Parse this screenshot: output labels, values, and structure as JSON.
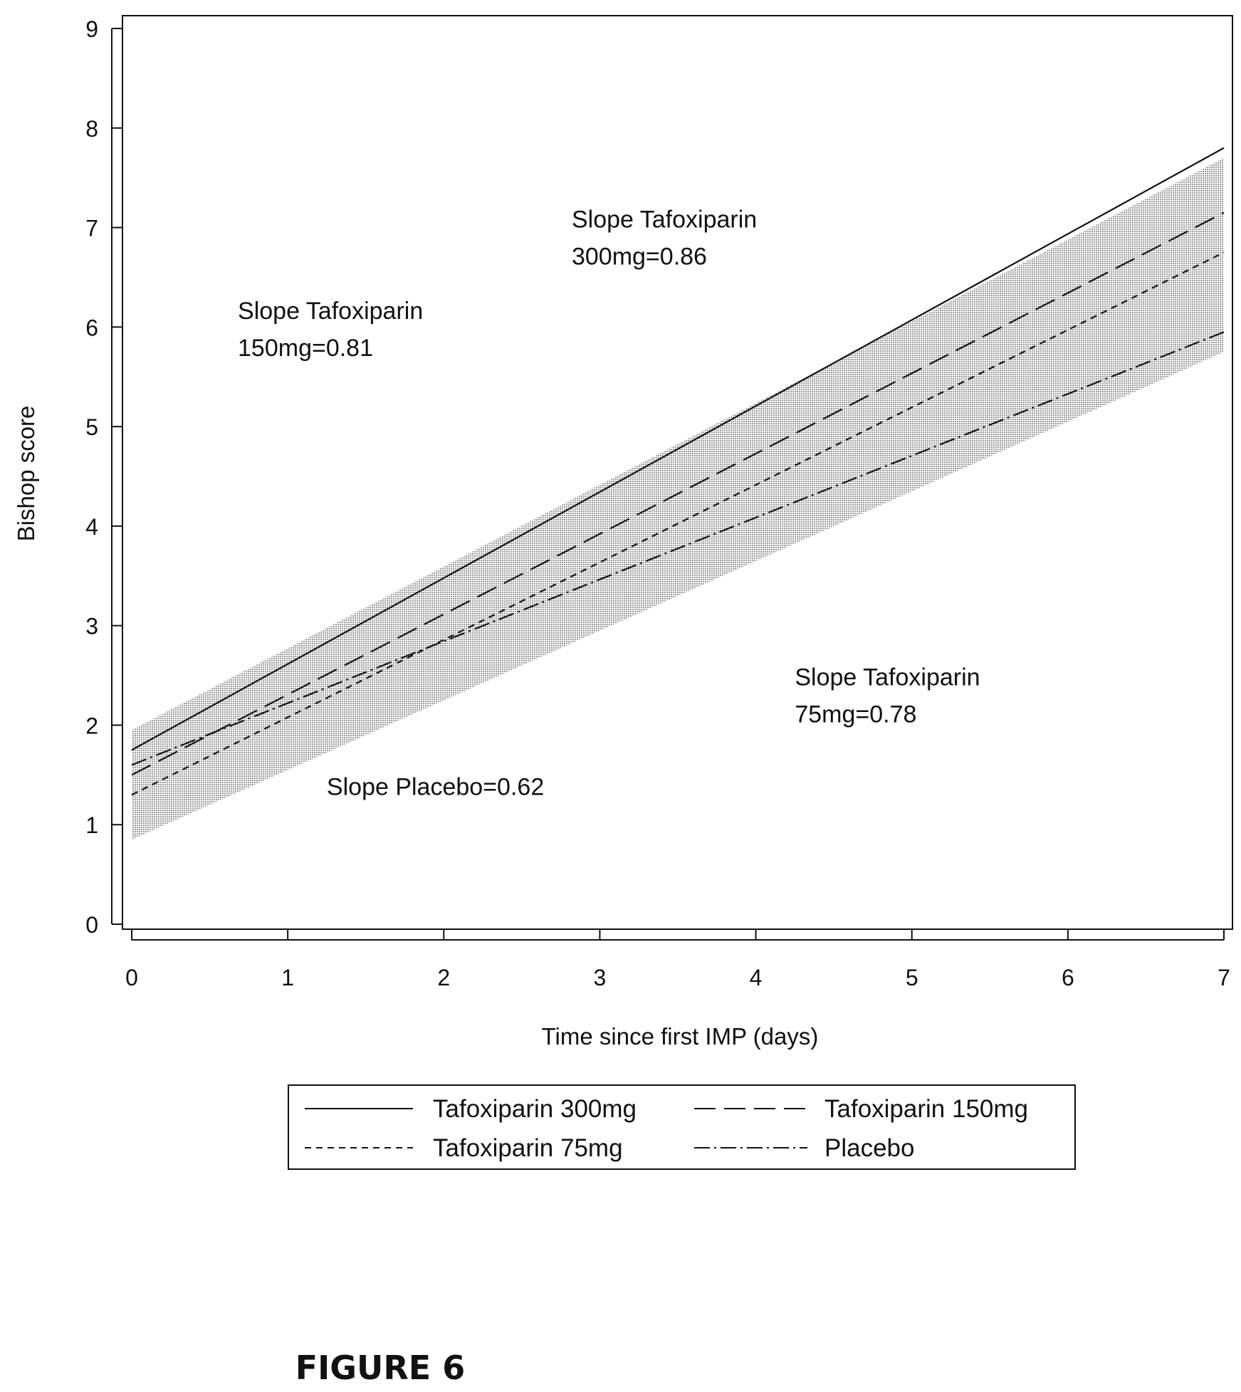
{
  "figure_label": "FIGURE 6",
  "chart_data": {
    "type": "line",
    "title": "",
    "xlabel": "Time since first IMP (days)",
    "ylabel": "Bishop score",
    "xlim": [
      0,
      7
    ],
    "ylim": [
      0,
      9
    ],
    "xticks": [
      "0",
      "1",
      "2",
      "3",
      "4",
      "5",
      "6",
      "7"
    ],
    "yticks": [
      "0",
      "1",
      "2",
      "3",
      "4",
      "5",
      "6",
      "7",
      "8",
      "9"
    ],
    "grid": false,
    "legend_position": "bottom",
    "confidence_band": {
      "x": [
        0,
        7
      ],
      "lower": [
        0.85,
        5.75
      ],
      "upper": [
        1.95,
        7.7
      ]
    },
    "series": [
      {
        "name": "Tafoxiparin 300mg",
        "style": "solid",
        "x": [
          0,
          7
        ],
        "y": [
          1.75,
          7.8
        ]
      },
      {
        "name": "Tafoxiparin 150mg",
        "style": "longdash",
        "x": [
          0,
          7
        ],
        "y": [
          1.5,
          7.15
        ]
      },
      {
        "name": "Tafoxiparin 75mg",
        "style": "shortdash",
        "x": [
          0,
          7
        ],
        "y": [
          1.3,
          6.75
        ]
      },
      {
        "name": "Placebo",
        "style": "dashdot",
        "x": [
          0,
          7
        ],
        "y": [
          1.6,
          5.95
        ]
      }
    ],
    "annotations": [
      {
        "lines": [
          "Slope Tafoxiparin",
          "300mg=0.86"
        ],
        "x": 2.82,
        "y": 7.0
      },
      {
        "lines": [
          "Slope Tafoxiparin",
          "150mg=0.81"
        ],
        "x": 0.68,
        "y": 6.08
      },
      {
        "lines": [
          "Slope Tafoxiparin",
          "75mg=0.78"
        ],
        "x": 4.25,
        "y": 2.4
      },
      {
        "lines": [
          "Slope Placebo=0.62"
        ],
        "x": 1.25,
        "y": 1.3
      }
    ]
  },
  "colors": {
    "line": "#111111",
    "band": "#bdbdbd"
  }
}
